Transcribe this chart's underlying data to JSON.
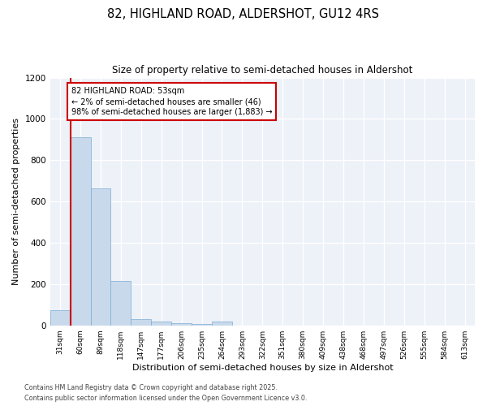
{
  "title1": "82, HIGHLAND ROAD, ALDERSHOT, GU12 4RS",
  "title2": "Size of property relative to semi-detached houses in Aldershot",
  "xlabel": "Distribution of semi-detached houses by size in Aldershot",
  "ylabel": "Number of semi-detached properties",
  "categories": [
    "31sqm",
    "60sqm",
    "89sqm",
    "118sqm",
    "147sqm",
    "177sqm",
    "206sqm",
    "235sqm",
    "264sqm",
    "293sqm",
    "322sqm",
    "351sqm",
    "380sqm",
    "409sqm",
    "438sqm",
    "468sqm",
    "497sqm",
    "526sqm",
    "555sqm",
    "584sqm",
    "613sqm"
  ],
  "values": [
    75,
    910,
    665,
    215,
    30,
    18,
    10,
    5,
    18,
    0,
    0,
    0,
    0,
    0,
    0,
    0,
    0,
    0,
    0,
    0,
    0
  ],
  "bar_color": "#c9d9ec",
  "bar_edge_color": "#7aadd4",
  "annotation_title": "82 HIGHLAND ROAD: 53sqm",
  "annotation_line1": "← 2% of semi-detached houses are smaller (46)",
  "annotation_line2": "98% of semi-detached houses are larger (1,883) →",
  "vline_color": "#cc0000",
  "annotation_box_color": "#cc0000",
  "ylim": [
    0,
    1200
  ],
  "yticks": [
    0,
    200,
    400,
    600,
    800,
    1000,
    1200
  ],
  "footer1": "Contains HM Land Registry data © Crown copyright and database right 2025.",
  "footer2": "Contains public sector information licensed under the Open Government Licence v3.0.",
  "background_color": "#edf1f8"
}
